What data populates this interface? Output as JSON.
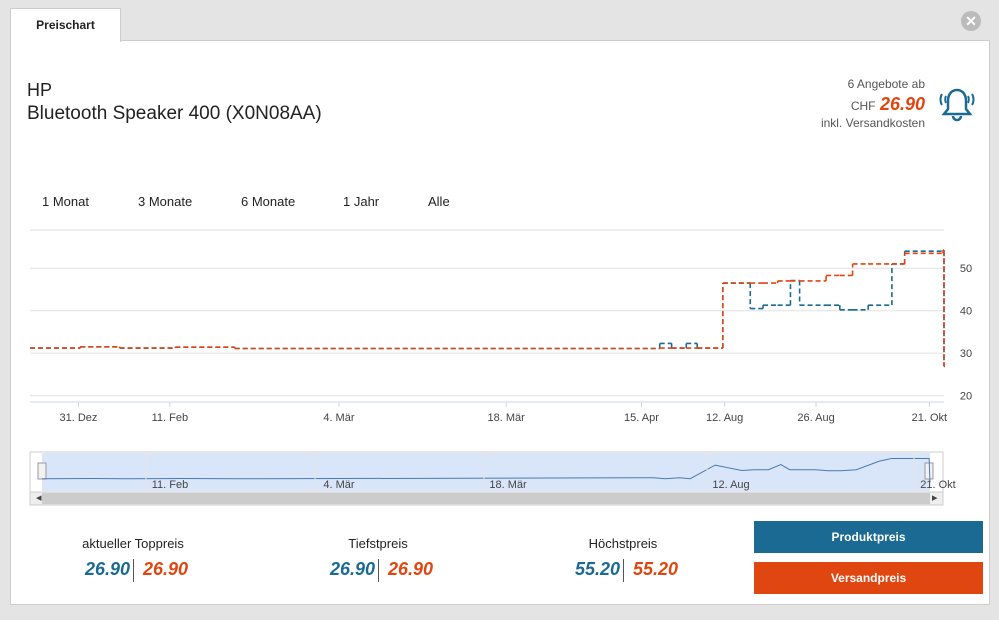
{
  "tab": "Preischart",
  "product": {
    "brand": "HP",
    "name": "Bluetooth Speaker 400 (X0N08AA)"
  },
  "offers": {
    "count_label": "6 Angebote ab",
    "currency": "CHF",
    "price": "26.90",
    "note": "inkl. Versandkosten"
  },
  "ranges": [
    "1 Monat",
    "3 Monate",
    "6 Monate",
    "1 Jahr",
    "Alle"
  ],
  "chart_data": {
    "type": "line",
    "x": [
      0,
      5.5,
      9.8,
      15.9,
      22.4,
      68.9,
      70.2,
      71.8,
      73.0,
      75.8,
      78.8,
      80.2,
      81.8,
      83.2,
      84.2,
      87.1,
      88.6,
      90.0,
      91.7,
      94.3,
      95.7,
      99.9,
      100
    ],
    "series": [
      {
        "name": "Produktpreis",
        "color": "#1b6a94",
        "values": [
          31.2,
          31.5,
          31.2,
          31.4,
          31.1,
          32.3,
          31.2,
          32.3,
          31.2,
          46.5,
          40.5,
          41.3,
          41.3,
          47.1,
          41.3,
          41.3,
          40.2,
          40.2,
          41.3,
          51,
          54,
          54,
          26.9
        ]
      },
      {
        "name": "Versandpreis",
        "color": "#e0460f",
        "values": [
          31.2,
          31.5,
          31.2,
          31.4,
          31.1,
          31.2,
          31.2,
          31.2,
          31.2,
          46.5,
          46.5,
          46.5,
          47,
          47,
          47,
          48.3,
          48.3,
          51,
          51,
          51,
          53.5,
          54.3,
          26.9
        ]
      }
    ],
    "xlim": [
      0,
      100
    ],
    "xticks": [
      {
        "value": 5.3,
        "label": "31. Dez"
      },
      {
        "value": 15.3,
        "label": "11. Feb"
      },
      {
        "value": 33.8,
        "label": "4. Mär"
      },
      {
        "value": 52.1,
        "label": "18. Mär"
      },
      {
        "value": 66.9,
        "label": "15. Apr"
      },
      {
        "value": 76,
        "label": "12. Aug"
      },
      {
        "value": 86,
        "label": "26. Aug"
      },
      {
        "value": 98.4,
        "label": "21. Okt"
      }
    ],
    "ylim": [
      18.5,
      59
    ],
    "yticks": [
      20,
      30,
      40,
      50
    ],
    "grid": true
  },
  "navigator": {
    "labels": [
      "11. Feb",
      "4. Mär",
      "18. Mär",
      "12. Aug",
      "21. Okt"
    ]
  },
  "stats": [
    {
      "label": "aktueller Toppreis",
      "product": "26.90",
      "shipping": "26.90"
    },
    {
      "label": "Tiefstpreis",
      "product": "26.90",
      "shipping": "26.90"
    },
    {
      "label": "Höchstpreis",
      "product": "55.20",
      "shipping": "55.20"
    }
  ]
}
